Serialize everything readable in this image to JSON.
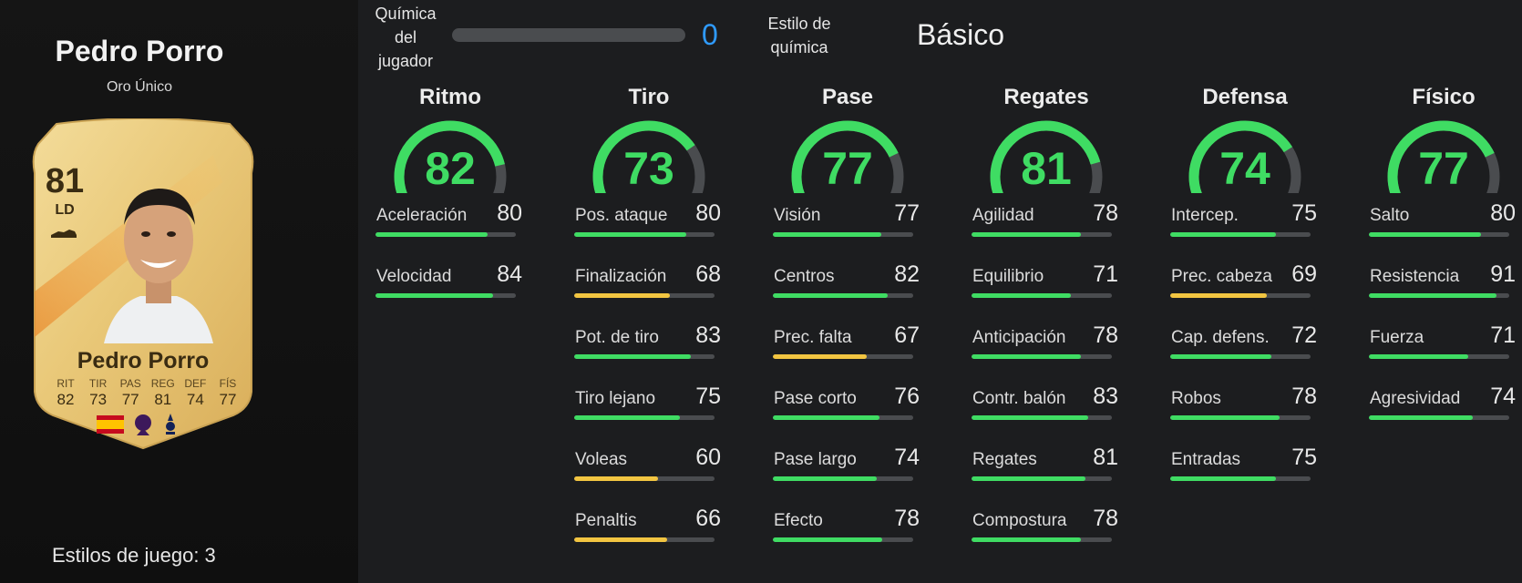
{
  "player": {
    "name": "Pedro Porro",
    "card_type": "Oro Único",
    "playstyles": "Estilos de juego: 3"
  },
  "card": {
    "rating": "81",
    "position": "LD",
    "name": "Pedro Porro",
    "stats": [
      {
        "label": "RIT",
        "value": "82"
      },
      {
        "label": "TIR",
        "value": "73"
      },
      {
        "label": "PAS",
        "value": "77"
      },
      {
        "label": "REG",
        "value": "81"
      },
      {
        "label": "DEF",
        "value": "74"
      },
      {
        "label": "FÍS",
        "value": "77"
      }
    ],
    "badges": [
      "spain-flag-icon",
      "premier-league-logo",
      "tottenham-crest"
    ]
  },
  "chemistry": {
    "label": "Química del jugador",
    "label_lines": [
      "Química",
      "del",
      "jugador"
    ],
    "value": "0",
    "bar_fraction": 0,
    "style_label": "Estilo de química",
    "style_label_lines": [
      "Estilo de",
      "química"
    ],
    "style_value": "Básico"
  },
  "colors": {
    "high": "#3fdc63",
    "medium": "#f2c541",
    "track": "#4a4c4f",
    "chem": "#2f9bff"
  },
  "categories": [
    {
      "title": "Ritmo",
      "value": 82,
      "stats": [
        {
          "name": "Aceleración",
          "value": 80
        },
        {
          "name": "Velocidad",
          "value": 84
        }
      ]
    },
    {
      "title": "Tiro",
      "value": 73,
      "stats": [
        {
          "name": "Pos. ataque",
          "value": 80
        },
        {
          "name": "Finalización",
          "value": 68
        },
        {
          "name": "Pot. de tiro",
          "value": 83
        },
        {
          "name": "Tiro lejano",
          "value": 75
        },
        {
          "name": "Voleas",
          "value": 60
        },
        {
          "name": "Penaltis",
          "value": 66
        }
      ]
    },
    {
      "title": "Pase",
      "value": 77,
      "stats": [
        {
          "name": "Visión",
          "value": 77
        },
        {
          "name": "Centros",
          "value": 82
        },
        {
          "name": "Prec. falta",
          "value": 67
        },
        {
          "name": "Pase corto",
          "value": 76
        },
        {
          "name": "Pase largo",
          "value": 74
        },
        {
          "name": "Efecto",
          "value": 78
        }
      ]
    },
    {
      "title": "Regates",
      "value": 81,
      "stats": [
        {
          "name": "Agilidad",
          "value": 78
        },
        {
          "name": "Equilibrio",
          "value": 71
        },
        {
          "name": "Anticipación",
          "value": 78
        },
        {
          "name": "Contr. balón",
          "value": 83
        },
        {
          "name": "Regates",
          "value": 81
        },
        {
          "name": "Compostura",
          "value": 78
        }
      ]
    },
    {
      "title": "Defensa",
      "value": 74,
      "stats": [
        {
          "name": "Intercep.",
          "value": 75
        },
        {
          "name": "Prec. cabeza",
          "value": 69
        },
        {
          "name": "Cap. defens.",
          "value": 72
        },
        {
          "name": "Robos",
          "value": 78
        },
        {
          "name": "Entradas",
          "value": 75
        }
      ]
    },
    {
      "title": "Físico",
      "value": 77,
      "stats": [
        {
          "name": "Salto",
          "value": 80
        },
        {
          "name": "Resistencia",
          "value": 91
        },
        {
          "name": "Fuerza",
          "value": 71
        },
        {
          "name": "Agresividad",
          "value": 74
        }
      ]
    }
  ]
}
